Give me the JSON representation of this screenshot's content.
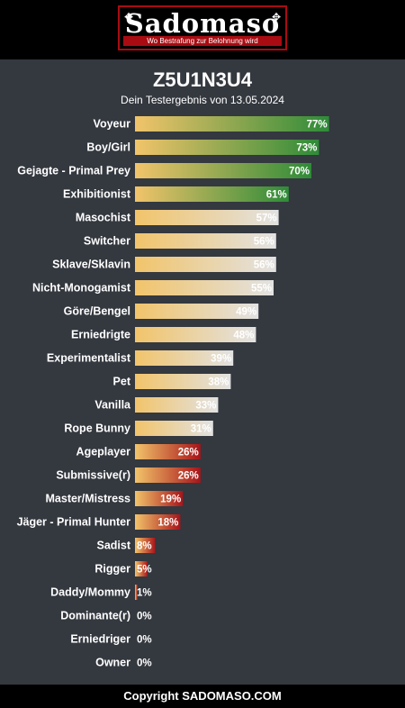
{
  "header": {
    "logo_text": "Sadomaso",
    "logo_tagline": "Wo Bestrafung zur Belohnung wird"
  },
  "title": "Z5U1N3U4",
  "subtitle": "Dein Testergebnis von 13.05.2024",
  "footer": "Copyright SADOMASO.COM",
  "colors": {
    "background": "#34383f",
    "bar_start": "#f2c46a",
    "high": "#2e8b38",
    "mid": "#e2e2e2",
    "low": "#a8141a"
  },
  "chart_data": {
    "type": "bar",
    "orientation": "horizontal",
    "title": "Z5U1N3U4",
    "subtitle": "Dein Testergebnis von 13.05.2024",
    "xlim": [
      0,
      100
    ],
    "value_suffix": "%",
    "categories": [
      "Voyeur",
      "Boy/Girl",
      "Gejagte - Primal Prey",
      "Exhibitionist",
      "Masochist",
      "Switcher",
      "Sklave/Sklavin",
      "Nicht-Monogamist",
      "Göre/Bengel",
      "Erniedrigte",
      "Experimentalist",
      "Pet",
      "Vanilla",
      "Rope Bunny",
      "Ageplayer",
      "Submissive(r)",
      "Master/Mistress",
      "Jäger - Primal Hunter",
      "Sadist",
      "Rigger",
      "Daddy/Mommy",
      "Dominante(r)",
      "Erniedriger",
      "Owner"
    ],
    "values": [
      77,
      73,
      70,
      61,
      57,
      56,
      56,
      55,
      49,
      48,
      39,
      38,
      33,
      31,
      26,
      26,
      19,
      18,
      8,
      5,
      1,
      0,
      0,
      0
    ],
    "labels": [
      "77%",
      "73%",
      "70%",
      "61%",
      "57%",
      "56%",
      "56%",
      "55%",
      "49%",
      "48%",
      "39%",
      "38%",
      "33%",
      "31%",
      "26%",
      "26%",
      "19%",
      "18%",
      "8%",
      "5%",
      "1%",
      "0%",
      "0%",
      "0%"
    ]
  }
}
